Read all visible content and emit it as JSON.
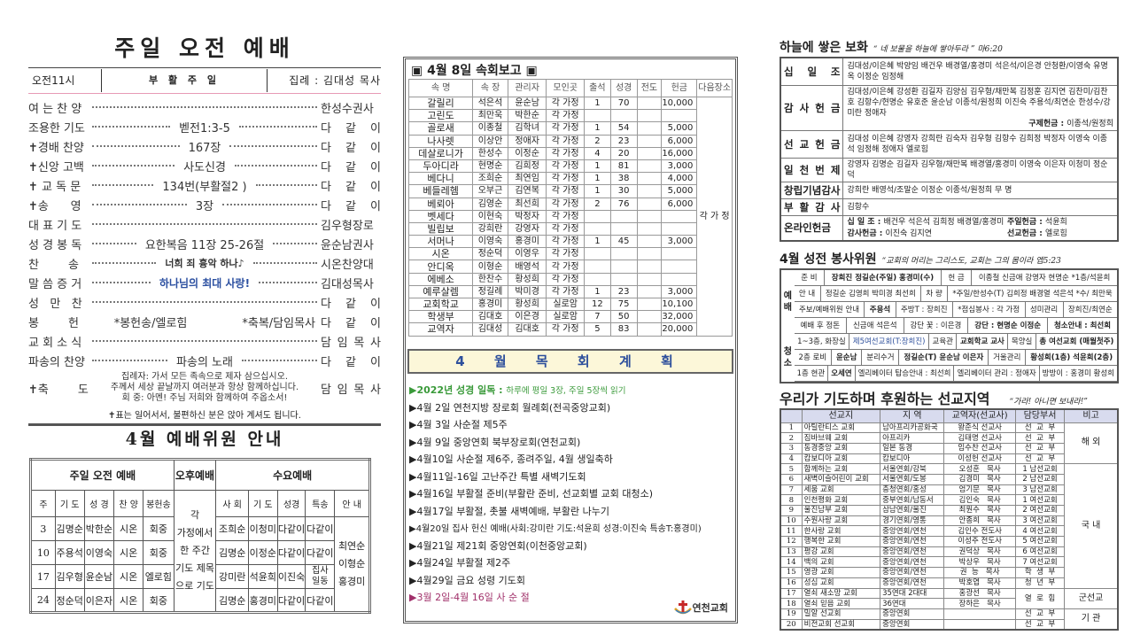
{
  "left": {
    "title": "주일 오전 예배",
    "header": {
      "time": "오전11시",
      "day": "부 활 주 일",
      "presider": "집례 : 김대성 목사"
    },
    "order": [
      {
        "label": "여 는 찬 양",
        "middle": "",
        "right": "한성수권사"
      },
      {
        "label": "조용한 기도",
        "middle": "벧전1:3-5",
        "right": "다 같 이"
      },
      {
        "label": "✝경배 찬양",
        "middle": "167장",
        "right": "다 같 이"
      },
      {
        "label": "✝신앙 고백",
        "middle": "사도신경",
        "right": "다 같 이"
      },
      {
        "label": "✝ 교 독 문",
        "middle": "134번(부활절2 )",
        "right": "다 같 이"
      },
      {
        "label": "✝송      영",
        "middle": "3장",
        "right": "다 같 이"
      },
      {
        "label": "대 표 기 도",
        "middle": "",
        "right": "김우형장로"
      },
      {
        "label": "성 경 봉 독",
        "middle": "요한복음 11장 25-26절",
        "right": "윤순남권사"
      },
      {
        "label": "찬        송",
        "middle": "너희 죄 흉악 하나♪",
        "right": "시온찬양대",
        "style": "bold"
      },
      {
        "label": "말 씀 증 거",
        "middle": "하나님의 최대 사랑!",
        "right": "김대성목사",
        "style": "blue"
      },
      {
        "label": "성   만   찬",
        "middle": "",
        "right": "다 같 이"
      },
      {
        "label": "봉        헌",
        "middle": "*봉헌송/엘로힘",
        "middle2": "*축복/담임목사",
        "right": "다 같 이"
      },
      {
        "label": "교 회 소 식",
        "middle": "",
        "right": "담 임 목 사"
      },
      {
        "label": "파송의 찬양",
        "middle": "파송의 노래",
        "right": "다 같 이"
      }
    ],
    "benediction": {
      "label": "✝축        도",
      "lines": [
        "집례자: 가서 모든 족속으로 제자 삼으십시오.",
        "주께서 세상 끝날까지 여러분과 항상 함께하십니다.",
        "회    중: 아멘! 주님 저희와 함께하여 주옵소서!"
      ],
      "right": "담 임 목 사"
    },
    "note": "✝표는 일어서서, 불편하신 분은 앉아 계셔도 됩니다.",
    "committee_title": "4월 예배위원 안내",
    "committee": {
      "groups": [
        "주일 오전 예배",
        "오후예배",
        "수요예배"
      ],
      "sunday_headers": [
        "주",
        "기 도",
        "성 경",
        "찬 양",
        "봉헌송"
      ],
      "afternoon_text": [
        "각",
        "가정에서",
        "한 주간",
        "기도 제목",
        "으로 기도"
      ],
      "wed_headers": [
        "사 회",
        "기 도",
        "성경",
        "특송",
        "안 내"
      ],
      "rows": [
        {
          "sun": [
            "3",
            "김명순",
            "박한순",
            "시온",
            "회중"
          ],
          "wed": [
            "조희순",
            "이청미",
            "다같이",
            "다같이"
          ]
        },
        {
          "sun": [
            "10",
            "주용석",
            "이영숙",
            "시온",
            "회중"
          ],
          "wed": [
            "김명순",
            "이정순",
            "다같이",
            "다같이"
          ]
        },
        {
          "sun": [
            "17",
            "김우형",
            "윤순남",
            "시온",
            "엘로힘"
          ],
          "wed": [
            "강미란",
            "석윤희",
            "이진숙",
            "집사 일동"
          ]
        },
        {
          "sun": [
            "24",
            "정순덕",
            "이은자",
            "시온",
            "회중"
          ],
          "wed": [
            "김명순",
            "홍경미",
            "다같이",
            "다같이"
          ]
        }
      ],
      "guides": [
        "최연순",
        "이형순",
        "홍경미"
      ]
    }
  },
  "middle": {
    "report_title": "▣ 4월 8일 속회보고 ▣",
    "headers": [
      "속 명",
      "속 장",
      "관리자",
      "모인곳",
      "출석",
      "성경",
      "전도",
      "헌금",
      "다음장소"
    ],
    "next_place": "각 가 정",
    "rows": [
      [
        "갈릴리",
        "석은석",
        "윤순남",
        "각 가정",
        "1",
        "70",
        "",
        "10,000"
      ],
      [
        "고린도",
        "최만욱",
        "박한순",
        "각 가정",
        "",
        "",
        "",
        ""
      ],
      [
        "골로새",
        "이종철",
        "김학녀",
        "각 가정",
        "1",
        "54",
        "",
        "5,000"
      ],
      [
        "나사렛",
        "이상안",
        "정애자",
        "각 가정",
        "2",
        "23",
        "",
        "6,000"
      ],
      [
        "데살로니가",
        "한성수",
        "이정순",
        "각 가정",
        "4",
        "20",
        "",
        "16,000"
      ],
      [
        "두아디라",
        "현명순",
        "김희정",
        "각 가정",
        "1",
        "81",
        "",
        "3,000"
      ],
      [
        "베다니",
        "조희순",
        "최연임",
        "각 가정",
        "1",
        "38",
        "",
        "4,000"
      ],
      [
        "베들레헴",
        "오부근",
        "김연복",
        "각 가정",
        "1",
        "30",
        "",
        "5,000"
      ],
      [
        "베뢰아",
        "김영순",
        "최선희",
        "각 가정",
        "2",
        "76",
        "",
        "6,000"
      ],
      [
        "벳세다",
        "이현숙",
        "박정자",
        "각 가정",
        "",
        "",
        "",
        ""
      ],
      [
        "빌립보",
        "강희란",
        "강영자",
        "각 가정",
        "",
        "",
        "",
        ""
      ],
      [
        "서머나",
        "이영숙",
        "홍경미",
        "각 가정",
        "1",
        "45",
        "",
        "3,000"
      ],
      [
        "시온",
        "정순덕",
        "이영우",
        "각 가정",
        "",
        "",
        "",
        ""
      ],
      [
        "안디옥",
        "이형순",
        "배영석",
        "각 가정",
        "",
        "",
        "",
        ""
      ],
      [
        "에베소",
        "한찬수",
        "황성희",
        "각 가정",
        "",
        "",
        "",
        ""
      ],
      [
        "예루살렘",
        "정길례",
        "박미경",
        "각 가정",
        "1",
        "23",
        "",
        "3,000"
      ],
      [
        "교회학교",
        "홍경미",
        "황성희",
        "실로암",
        "12",
        "75",
        "",
        "10,100"
      ],
      [
        "학생부",
        "김대호",
        "이은경",
        "실로암",
        "7",
        "50",
        "",
        "32,000"
      ],
      [
        "교역자",
        "김대성",
        "김대호",
        "각 가정",
        "5",
        "83",
        "",
        "20,000"
      ]
    ],
    "plan_title": "4 월 목 회 계 획",
    "plan": [
      {
        "bold": "▶2022년 성경 일독 : ",
        "text": "하루에 평일 3장, 주일 5장씩 읽기",
        "color": "#3a9a3a"
      },
      {
        "text": "▶4월 2일 연천지방 장로회 월례회(전곡중앙교회)"
      },
      {
        "text": "▶4월 3일 사순절 제5주"
      },
      {
        "text": "▶4월 9일 중앙연회 북부장로회(연천교회)"
      },
      {
        "text": "▶4월10일 사순절 제6주, 종려주일, 4월 생일축하"
      },
      {
        "text": "▶4월11일-16일 고난주간 특별 새벽기도회"
      },
      {
        "text": "▶4월16일 부활절 준비(부활란 준비, 선교회별 교회 대청소)"
      },
      {
        "text": "▶4월17일 부활절, 촛불 새벽예배, 부활란 나누기"
      },
      {
        "text": "▶4월20일 집사 헌신 예배(사회:강미란 기도:석윤희 성경:이진숙 특송T:홍경미)"
      },
      {
        "text": "▶4월21일 제21회 중앙연회(이천중앙교회)"
      },
      {
        "text": "▶4월24일 부활절 제2주"
      },
      {
        "text": "▶4월29일 금요 성령 기도회"
      },
      {
        "text": "▶3월 2일-4월 16일 사 순 절",
        "color": "#a0306a"
      }
    ],
    "logo_text": "연천교회"
  },
  "right": {
    "offering_title": "하늘에 쌓은 보화",
    "offering_quote": "“ 네 보물을 하늘에 쌓아두라 ” 마6:20",
    "offerings": [
      {
        "label": "십 일 조",
        "text": "김대성/이은혜 박양임 배건우 배경열/홍경미 석은석/이은경 안청환/이영숙 유명옥 이정순 임정해"
      },
      {
        "label": "감 사 헌 금",
        "text": "김대성/이은혜 강성환 김길자 김양심 김우형/채만복 김정훈 김지연 김찬미/김찬호 김항수/현명순 유호준 윤순남 이종석/원정희 이진숙 주용석/최연순 한성수/강미란 정애자",
        "extra_label": "구제헌금 : ",
        "extra": "이종석/원정희"
      },
      {
        "label": "선 교 헌 금",
        "text": "김대성 이은혜 강영자 강희란 김숙자 김우형 김항수 김희정 박정자 이영숙 이종석 임정해 정애자 엘로힘"
      },
      {
        "label": "일 천 번 제",
        "text": "강영자 김명순 김길자 김우형/채만복 배경열/홍경미 이영숙 이은자 이청미 정순덕"
      },
      {
        "label": "창립기념감사",
        "text": "강희란 배영석/조말순 이정순 이종석/원정희 무  명"
      },
      {
        "label": "부 활 감 사",
        "text": "김항수"
      }
    ],
    "online": {
      "label": "온라인헌금",
      "items": [
        {
          "k": "십 일 조 : ",
          "v": "배건우 석은석 김희정 배경열/홍경미"
        },
        {
          "k": "주일헌금 : ",
          "v": "석윤희"
        },
        {
          "k": "감사헌금 : ",
          "v": "이진숙 김지연"
        },
        {
          "k": "선교헌금 : ",
          "v": "엘로힘"
        }
      ]
    },
    "serve_title": "4월 성전 봉사위원",
    "serve_quote": "“교회의 머리는 그리스도, 교회는 그의 몸이라 엡5:23",
    "serve": [
      {
        "label": "예 배",
        "rows": [
          [
            {
              "t": "준 비"
            },
            {
              "t": "장희진 정길순(주일) 홍경미(수)",
              "s": "b"
            },
            {
              "t": "헌 금"
            },
            {
              "t": "이종철 신금애 강영자 현명순 *1층/석윤희"
            }
          ],
          [
            {
              "t": "안 내"
            },
            {
              "t": "정길순 김영희 박미경 최선희"
            },
            {
              "t": "차 량"
            },
            {
              "t": "*주일/한성수(T) 김희정 배경열 석은석 *수/ 최만욱"
            }
          ],
          [
            {
              "t": "주보/예배위원 안내"
            },
            {
              "t": "주용석",
              "s": "b"
            },
            {
              "t": "주방T : 장희진"
            },
            {
              "t": "*점심봉사 : 각 가정"
            },
            {
              "t": "성미관리"
            },
            {
              "t": "장희진/최연순"
            }
          ],
          [
            {
              "t": "예배 후 정돈"
            },
            {
              "t": "신금애 석은석"
            },
            {
              "t": "강단 꽃 : 이은경"
            },
            {
              "t": "강단 : 현명순 이정순",
              "s": "b"
            },
            {
              "t": "청소안내 : 최선희",
              "s": "b"
            }
          ]
        ]
      },
      {
        "label": "청 소",
        "rows": [
          [
            {
              "t": "1~3층, 화장실"
            },
            {
              "t": "제5여선교회(T:장희진)",
              "s": "blue"
            },
            {
              "t": "교육관"
            },
            {
              "t": "교회학교 교사",
              "s": "b"
            },
            {
              "t": "목양실"
            },
            {
              "t": "총 여선교회 (매월첫주)",
              "s": "b"
            }
          ],
          [
            {
              "t": "2층 로비"
            },
            {
              "t": "윤순남",
              "s": "b"
            },
            {
              "t": "분리수거"
            },
            {
              "t": "정길순(T) 윤순남 이은자",
              "s": "b"
            },
            {
              "t": "거울관리"
            },
            {
              "t": "황성희(1층) 석윤희(2층)",
              "s": "b"
            }
          ],
          [
            {
              "t": "1층 현관"
            },
            {
              "t": "오세연",
              "s": "b"
            },
            {
              "t": "엘리베이터 탑승안내 : 최선희"
            },
            {
              "t": "엘리베이터 관리 : 정애자"
            },
            {
              "t": "방방이 : 홍경미 황성희"
            }
          ]
        ]
      }
    ],
    "mission_title": "우리가 기도하며 후원하는 선교지역",
    "mission_quote": "“가라! 아니면 보내라!”",
    "mission_headers": [
      "",
      "선교지",
      "지  역",
      "교역자(선교사)",
      "담당부서",
      "비고"
    ],
    "missions": [
      [
        "1",
        "아틸란티스 교회",
        "남아프리카공화국",
        "왕준식 선교사",
        "선  교  부"
      ],
      [
        "2",
        "짐바브웨 교회",
        "아프리카",
        "김태명 선교사",
        "선  교  부"
      ],
      [
        "3",
        "동경중앙 교회",
        "일본 동경",
        "임수찬 선교사",
        "선  교  부"
      ],
      [
        "4",
        "캄보디아 교회",
        "캄보디아",
        "이성헌 선교사",
        "선  교  부"
      ],
      [
        "5",
        "함께하는 교회",
        "서울연회/강북",
        "오성훈   목사",
        "1 남선교회"
      ],
      [
        "6",
        "새벽이슬어린이 교회",
        "서울연회/도봉",
        "김경미   목사",
        "2 남선교회"
      ],
      [
        "7",
        "세움 교회",
        "충청연회/홍성",
        "엄기문   목사",
        "3 남선교회"
      ],
      [
        "8",
        "인천평화 교회",
        "중부연회/남동서",
        "김인숙   목사",
        "1 여선교회"
      ],
      [
        "9",
        "울진남부 교회",
        "삼남연회/울진",
        "최원수   목사",
        "2 여선교회"
      ],
      [
        "10",
        "수원사랑 교회",
        "경기연회/영통",
        "안종희   목사",
        "3 여선교회"
      ],
      [
        "11",
        "한사랑 교회",
        "중앙연회/연천",
        "김인수 전도사",
        "4 여선교회"
      ],
      [
        "12",
        "행복한 교회",
        "중앙연회/연천",
        "이성주 전도사",
        "5 여선교회"
      ],
      [
        "13",
        "평강 교회",
        "중앙연회/연천",
        "권덕상   목사",
        "6 여선교회"
      ],
      [
        "14",
        "백의 교회",
        "중앙연회/연천",
        "박상우   목사",
        "7 여선교회"
      ],
      [
        "15",
        "영광 교회",
        "중앙연회/연천",
        "권  능   목사",
        "학  생  부"
      ],
      [
        "16",
        "성심 교회",
        "중앙연회/연천",
        "박호엽   목사",
        "청  년  부"
      ],
      [
        "17",
        "열쇠 새소망 교회",
        "35연대 2대대",
        "홍광선   목사",
        "열  로  힘"
      ],
      [
        "18",
        "열쇠 믿음 교회",
        "36연대",
        "장하은   목사",
        ""
      ],
      [
        "19",
        "밀알 선교회",
        "중앙연회",
        "",
        "선  교  부"
      ],
      [
        "20",
        "비전교회 선교회",
        "중앙연회",
        "",
        "선  교  부"
      ]
    ],
    "mission_remarks": [
      {
        "text": "해  외",
        "span": 4
      },
      {
        "text": "국  내",
        "span": 12
      },
      {
        "text": "군선교",
        "span": 2
      },
      {
        "text": "기  관",
        "span": 2
      }
    ]
  }
}
